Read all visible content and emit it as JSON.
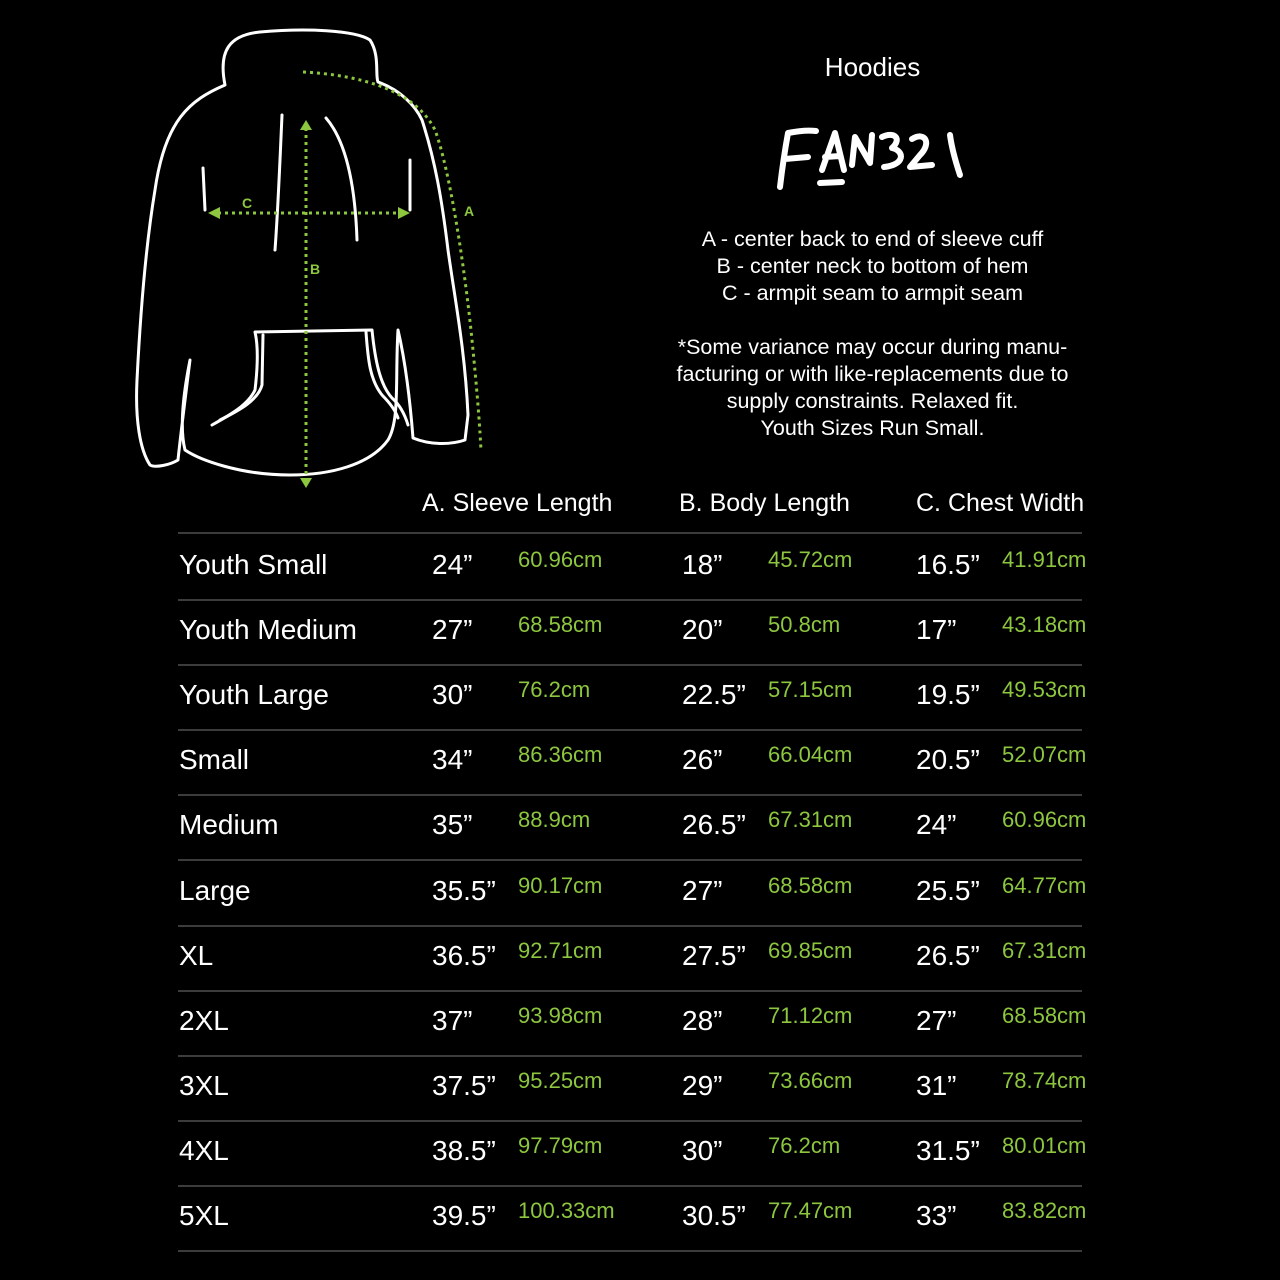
{
  "title": "Hoodies",
  "logo_text": "FAN321",
  "diagram": {
    "labels": {
      "a": "A",
      "b": "B",
      "c": "C"
    },
    "accent_color": "#8dc63f"
  },
  "definitions": [
    "A - center back to end of sleeve cuff",
    "B - center neck to bottom of hem",
    "C - armpit seam to armpit seam"
  ],
  "note_lines": [
    "*Some variance may occur during manu-",
    "facturing or with like-replacements due to",
    "supply constraints. Relaxed fit.",
    "Youth Sizes Run Small."
  ],
  "table": {
    "headers": [
      "A. Sleeve Length",
      "B. Body Length",
      "C. Chest Width"
    ],
    "rows": [
      {
        "size": "Youth Small",
        "a_in": "24”",
        "a_cm": "60.96cm",
        "b_in": "18”",
        "b_cm": "45.72cm",
        "c_in": "16.5”",
        "c_cm": "41.91cm"
      },
      {
        "size": "Youth Medium",
        "a_in": "27”",
        "a_cm": "68.58cm",
        "b_in": "20”",
        "b_cm": "50.8cm",
        "c_in": "17”",
        "c_cm": "43.18cm"
      },
      {
        "size": "Youth Large",
        "a_in": "30”",
        "a_cm": "76.2cm",
        "b_in": "22.5”",
        "b_cm": "57.15cm",
        "c_in": "19.5”",
        "c_cm": "49.53cm"
      },
      {
        "size": "Small",
        "a_in": "34”",
        "a_cm": "86.36cm",
        "b_in": "26”",
        "b_cm": "66.04cm",
        "c_in": "20.5”",
        "c_cm": "52.07cm"
      },
      {
        "size": "Medium",
        "a_in": "35”",
        "a_cm": "88.9cm",
        "b_in": "26.5”",
        "b_cm": "67.31cm",
        "c_in": "24”",
        "c_cm": "60.96cm"
      },
      {
        "size": "Large",
        "a_in": "35.5”",
        "a_cm": "90.17cm",
        "b_in": "27”",
        "b_cm": "68.58cm",
        "c_in": "25.5”",
        "c_cm": "64.77cm"
      },
      {
        "size": "XL",
        "a_in": "36.5”",
        "a_cm": "92.71cm",
        "b_in": "27.5”",
        "b_cm": "69.85cm",
        "c_in": "26.5”",
        "c_cm": "67.31cm"
      },
      {
        "size": "2XL",
        "a_in": "37”",
        "a_cm": "93.98cm",
        "b_in": "28”",
        "b_cm": "71.12cm",
        "c_in": "27”",
        "c_cm": "68.58cm"
      },
      {
        "size": "3XL",
        "a_in": "37.5”",
        "a_cm": "95.25cm",
        "b_in": "29”",
        "b_cm": "73.66cm",
        "c_in": "31”",
        "c_cm": "78.74cm"
      },
      {
        "size": "4XL",
        "a_in": "38.5”",
        "a_cm": "97.79cm",
        "b_in": "30”",
        "b_cm": "76.2cm",
        "c_in": "31.5”",
        "c_cm": "80.01cm"
      },
      {
        "size": "5XL",
        "a_in": "39.5”",
        "a_cm": "100.33cm",
        "b_in": "30.5”",
        "b_cm": "77.47cm",
        "c_in": "33”",
        "c_cm": "83.82cm"
      }
    ]
  }
}
